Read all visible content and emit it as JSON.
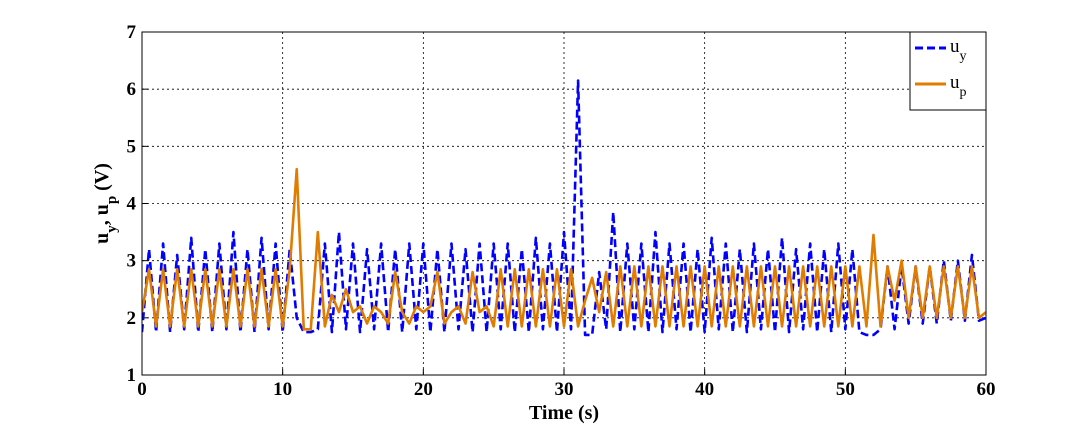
{
  "chart_data": {
    "type": "line",
    "xlabel": "Time (s)",
    "ylabel_parts": [
      "u",
      "y",
      ", u",
      "p",
      " (V)"
    ],
    "xlim": [
      0,
      60
    ],
    "xticks": [
      0,
      10,
      20,
      30,
      40,
      50,
      60
    ],
    "ylim": [
      1,
      7
    ],
    "yticks": [
      1,
      2,
      3,
      4,
      5,
      6,
      7
    ],
    "grid": true,
    "legend": "upper right",
    "x": [
      0,
      0.5,
      1,
      1.5,
      2,
      2.5,
      3,
      3.5,
      4,
      4.5,
      5,
      5.5,
      6,
      6.5,
      7,
      7.5,
      8,
      8.5,
      9,
      9.5,
      10,
      10.5,
      11,
      11.5,
      12,
      12.5,
      13,
      13.5,
      14,
      14.5,
      15,
      15.5,
      16,
      16.5,
      17,
      17.5,
      18,
      18.5,
      19,
      19.5,
      20,
      20.5,
      21,
      21.5,
      22,
      22.5,
      23,
      23.5,
      24,
      24.5,
      25,
      25.5,
      26,
      26.5,
      27,
      27.5,
      28,
      28.5,
      29,
      29.5,
      30,
      30.5,
      31,
      31.5,
      32,
      32.5,
      33,
      33.5,
      34,
      34.5,
      35,
      35.5,
      36,
      36.5,
      37,
      37.5,
      38,
      38.5,
      39,
      39.5,
      40,
      40.5,
      41,
      41.5,
      42,
      42.5,
      43,
      43.5,
      44,
      44.5,
      45,
      45.5,
      46,
      46.5,
      47,
      47.5,
      48,
      48.5,
      49,
      49.5,
      50,
      50.5,
      51,
      51.5,
      52,
      52.5,
      53,
      53.5,
      54,
      54.5,
      55,
      55.5,
      56,
      56.5,
      57,
      57.5,
      58,
      58.5,
      59,
      59.5,
      60
    ],
    "series": [
      {
        "name": "u",
        "subscript": "y",
        "color": "#0000ff",
        "line_style": "dashed",
        "values": [
          1.75,
          3.2,
          1.75,
          3.3,
          1.75,
          3.1,
          1.8,
          3.4,
          1.75,
          3.2,
          1.75,
          3.3,
          1.8,
          3.5,
          1.75,
          3.2,
          1.75,
          3.4,
          1.8,
          3.3,
          1.75,
          3.2,
          2.0,
          1.75,
          1.75,
          1.8,
          3.3,
          1.75,
          3.5,
          1.8,
          3.3,
          1.75,
          3.2,
          1.8,
          3.3,
          1.75,
          3.2,
          1.75,
          3.3,
          1.8,
          3.3,
          1.75,
          3.2,
          1.75,
          3.3,
          1.8,
          3.2,
          1.75,
          3.3,
          1.75,
          3.3,
          1.8,
          3.3,
          1.75,
          3.2,
          1.75,
          3.4,
          1.8,
          3.3,
          1.75,
          3.5,
          1.8,
          6.15,
          1.7,
          1.7,
          2.8,
          1.8,
          3.85,
          1.75,
          3.3,
          1.8,
          3.3,
          1.75,
          3.5,
          1.75,
          3.3,
          1.8,
          3.3,
          1.75,
          3.2,
          1.75,
          3.4,
          1.8,
          3.3,
          1.75,
          3.2,
          1.75,
          3.3,
          1.8,
          3.2,
          1.75,
          3.4,
          1.75,
          3.2,
          1.8,
          3.3,
          1.75,
          3.2,
          1.75,
          3.3,
          1.8,
          3.2,
          1.75,
          1.7,
          1.7,
          1.8,
          2.9,
          1.8,
          2.9,
          1.9,
          2.9,
          1.9,
          2.9,
          1.9,
          3.0,
          1.95,
          3.0,
          1.95,
          3.1,
          1.95,
          2.0
        ]
      },
      {
        "name": "u",
        "subscript": "p",
        "color": "#e07c00",
        "line_style": "solid",
        "values": [
          2.1,
          2.85,
          1.85,
          2.85,
          1.85,
          2.85,
          1.85,
          2.85,
          1.85,
          2.85,
          1.85,
          2.85,
          1.85,
          2.85,
          1.85,
          2.85,
          1.85,
          2.85,
          1.85,
          2.85,
          1.85,
          2.85,
          4.6,
          1.8,
          1.8,
          3.5,
          1.85,
          2.4,
          2.1,
          2.5,
          2.1,
          2.2,
          1.9,
          2.2,
          2.1,
          1.9,
          2.8,
          2.1,
          1.9,
          2.2,
          2.1,
          2.2,
          2.8,
          1.9,
          2.1,
          2.2,
          1.9,
          2.8,
          2.1,
          2.2,
          1.85,
          2.85,
          1.85,
          2.85,
          1.85,
          2.85,
          1.85,
          2.85,
          1.85,
          2.85,
          1.85,
          2.85,
          1.85,
          2.3,
          2.7,
          2.1,
          2.8,
          1.85,
          2.9,
          1.85,
          2.9,
          1.85,
          2.9,
          1.85,
          2.9,
          1.85,
          2.9,
          1.85,
          2.9,
          1.85,
          2.9,
          1.85,
          2.9,
          1.85,
          2.9,
          1.85,
          2.9,
          1.85,
          2.9,
          1.85,
          2.9,
          1.85,
          2.9,
          1.85,
          2.9,
          1.85,
          2.9,
          1.85,
          2.9,
          1.85,
          2.9,
          1.85,
          2.9,
          1.85,
          3.45,
          1.85,
          2.9,
          2.3,
          3.0,
          2.0,
          2.9,
          2.0,
          2.9,
          2.0,
          2.9,
          2.0,
          2.9,
          2.0,
          2.9,
          2.0,
          2.1
        ]
      }
    ]
  }
}
